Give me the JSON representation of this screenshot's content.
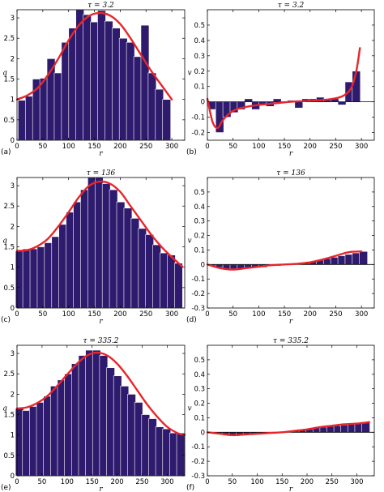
{
  "chart_data": [
    {
      "id": "a",
      "panel_label": "(a)",
      "type": "bar",
      "title": "τ = 3.2",
      "xlabel": "r",
      "ylabel": "q",
      "xlim": [
        0,
        325
      ],
      "ylim": [
        0,
        3.2
      ],
      "xticks": [
        "0",
        "50",
        "100",
        "150",
        "200",
        "250",
        "300"
      ],
      "yticks": [
        "0",
        "0.5",
        "1",
        "1.5",
        "2",
        "2.5",
        "3"
      ],
      "x": [
        10,
        24,
        38,
        52,
        66,
        80,
        94,
        108,
        122,
        136,
        150,
        164,
        178,
        192,
        206,
        220,
        234,
        248,
        262,
        276,
        290
      ],
      "series": [
        {
          "kind": "bar",
          "values": [
            0.98,
            1.08,
            1.5,
            1.52,
            2.0,
            1.65,
            2.4,
            2.75,
            3.2,
            3.08,
            2.9,
            3.18,
            2.92,
            2.75,
            2.5,
            2.4,
            2.05,
            2.82,
            1.65,
            1.25,
            1.0
          ]
        },
        {
          "kind": "line",
          "color": "#e8262a",
          "x": [
            0,
            20,
            40,
            60,
            80,
            100,
            120,
            140,
            160,
            180,
            200,
            220,
            240,
            260,
            280,
            300
          ],
          "values": [
            1.0,
            1.1,
            1.28,
            1.6,
            2.0,
            2.45,
            2.82,
            3.05,
            3.12,
            3.06,
            2.85,
            2.5,
            2.1,
            1.7,
            1.35,
            1.0
          ]
        }
      ]
    },
    {
      "id": "b",
      "panel_label": "(b)",
      "type": "bar",
      "title": "τ = 3.2",
      "xlabel": "r",
      "ylabel": "v",
      "xlim": [
        0,
        325
      ],
      "ylim": [
        -0.25,
        0.6
      ],
      "xticks": [
        "0",
        "50",
        "100",
        "150",
        "200",
        "250",
        "300"
      ],
      "yticks": [
        "-0.2",
        "-0.1",
        "0",
        "0.1",
        "0.2",
        "0.3",
        "0.4",
        "0.5"
      ],
      "x": [
        10,
        24,
        38,
        52,
        66,
        80,
        94,
        108,
        122,
        136,
        150,
        164,
        178,
        192,
        206,
        220,
        234,
        248,
        262,
        276,
        290
      ],
      "series": [
        {
          "kind": "bar",
          "values": [
            -0.05,
            -0.2,
            -0.1,
            -0.07,
            -0.05,
            0.02,
            -0.05,
            -0.02,
            -0.03,
            0.02,
            0.0,
            0.01,
            -0.04,
            0.02,
            0.02,
            0.03,
            0.02,
            0.02,
            -0.02,
            0.13,
            0.2
          ]
        },
        {
          "kind": "line",
          "color": "#e8262a",
          "x": [
            0,
            10,
            20,
            30,
            45,
            60,
            80,
            100,
            130,
            160,
            190,
            220,
            245,
            265,
            280,
            290,
            297
          ],
          "values": [
            0.02,
            -0.13,
            -0.17,
            -0.12,
            -0.07,
            -0.045,
            -0.03,
            -0.02,
            -0.01,
            0.0,
            0.005,
            0.01,
            0.02,
            0.04,
            0.09,
            0.2,
            0.35
          ]
        }
      ]
    },
    {
      "id": "c",
      "panel_label": "(c)",
      "type": "bar",
      "title": "τ = 136",
      "xlabel": "r",
      "ylabel": "q",
      "xlim": [
        0,
        325
      ],
      "ylim": [
        0,
        3.2
      ],
      "xticks": [
        "0",
        "50",
        "100",
        "150",
        "200",
        "250",
        "300"
      ],
      "yticks": [
        "0",
        "0.5",
        "1",
        "1.5",
        "2",
        "2.5",
        "3"
      ],
      "x": [
        5,
        19,
        33,
        47,
        61,
        75,
        89,
        103,
        117,
        131,
        145,
        159,
        173,
        187,
        201,
        215,
        229,
        243,
        257,
        271,
        285,
        299,
        313
      ],
      "series": [
        {
          "kind": "bar",
          "values": [
            1.4,
            1.45,
            1.45,
            1.5,
            1.6,
            1.75,
            2.05,
            2.35,
            2.6,
            2.9,
            3.2,
            3.2,
            3.05,
            2.9,
            2.6,
            2.45,
            2.2,
            1.95,
            1.8,
            1.55,
            1.35,
            1.3,
            1.1
          ]
        },
        {
          "kind": "line",
          "color": "#e8262a",
          "x": [
            0,
            20,
            40,
            60,
            80,
            100,
            120,
            140,
            160,
            180,
            200,
            220,
            240,
            260,
            280,
            300,
            320
          ],
          "values": [
            1.4,
            1.42,
            1.52,
            1.7,
            2.0,
            2.35,
            2.72,
            3.0,
            3.1,
            3.05,
            2.85,
            2.5,
            2.15,
            1.8,
            1.5,
            1.25,
            1.02
          ]
        }
      ]
    },
    {
      "id": "d",
      "panel_label": "(d)",
      "type": "bar",
      "title": "τ = 136",
      "xlabel": "r",
      "ylabel": "v",
      "xlim": [
        0,
        325
      ],
      "ylim": [
        -0.3,
        0.6
      ],
      "xticks": [
        "0",
        "50",
        "100",
        "150",
        "200",
        "250",
        "300"
      ],
      "yticks": [
        "-0.3",
        "-0.2",
        "-0.1",
        "0",
        "0.1",
        "0.2",
        "0.3",
        "0.4",
        "0.5"
      ],
      "x": [
        10,
        24,
        38,
        52,
        66,
        80,
        94,
        108,
        122,
        136,
        150,
        164,
        178,
        192,
        206,
        220,
        234,
        248,
        262,
        276,
        290,
        304
      ],
      "series": [
        {
          "kind": "bar",
          "values": [
            -0.01,
            -0.02,
            -0.03,
            -0.03,
            -0.03,
            -0.02,
            -0.02,
            -0.02,
            -0.01,
            -0.01,
            0.0,
            0.0,
            0.01,
            0.01,
            0.02,
            0.03,
            0.04,
            0.05,
            0.06,
            0.07,
            0.08,
            0.09
          ]
        },
        {
          "kind": "line",
          "color": "#e8262a",
          "x": [
            0,
            25,
            50,
            75,
            100,
            125,
            150,
            175,
            200,
            225,
            250,
            275,
            300
          ],
          "values": [
            0.0,
            -0.025,
            -0.035,
            -0.025,
            -0.015,
            -0.005,
            0.0,
            0.005,
            0.015,
            0.035,
            0.06,
            0.085,
            0.09
          ]
        }
      ]
    },
    {
      "id": "e",
      "panel_label": "(e)",
      "type": "bar",
      "title": "τ = 335.2",
      "xlabel": "r",
      "ylabel": "q",
      "xlim": [
        0,
        335
      ],
      "ylim": [
        0,
        3.2
      ],
      "xticks": [
        "0",
        "50",
        "100",
        "150",
        "200",
        "250",
        "300"
      ],
      "yticks": [
        "0",
        "0.5",
        "1",
        "1.5",
        "2",
        "2.5",
        "3"
      ],
      "x": [
        5,
        19,
        33,
        47,
        61,
        75,
        89,
        103,
        117,
        131,
        145,
        159,
        173,
        187,
        201,
        215,
        229,
        243,
        257,
        271,
        285,
        299,
        313,
        327
      ],
      "series": [
        {
          "kind": "bar",
          "values": [
            1.65,
            1.6,
            1.7,
            1.8,
            1.95,
            2.2,
            2.35,
            2.5,
            2.75,
            2.95,
            3.08,
            3.08,
            2.95,
            2.65,
            2.45,
            2.2,
            2.0,
            1.8,
            1.5,
            1.4,
            1.2,
            1.15,
            1.05,
            1.05
          ]
        },
        {
          "kind": "line",
          "color": "#e8262a",
          "x": [
            0,
            20,
            40,
            60,
            80,
            100,
            120,
            140,
            160,
            180,
            200,
            220,
            240,
            260,
            280,
            300,
            320,
            335
          ],
          "values": [
            1.65,
            1.68,
            1.78,
            1.95,
            2.2,
            2.48,
            2.75,
            2.95,
            3.02,
            2.95,
            2.75,
            2.45,
            2.1,
            1.75,
            1.45,
            1.2,
            1.05,
            1.0
          ]
        }
      ]
    },
    {
      "id": "f",
      "panel_label": "(f)",
      "type": "bar",
      "title": "τ = 335.2",
      "xlabel": "r",
      "ylabel": "v",
      "xlim": [
        0,
        335
      ],
      "ylim": [
        -0.3,
        0.6
      ],
      "xticks": [
        "0",
        "50",
        "100",
        "150",
        "200",
        "250",
        "300"
      ],
      "yticks": [
        "-0.3",
        "-0.2",
        "-0.1",
        "0",
        "0.1",
        "0.2",
        "0.3",
        "0.4",
        "0.5"
      ],
      "x": [
        10,
        24,
        38,
        52,
        66,
        80,
        94,
        108,
        122,
        136,
        150,
        164,
        178,
        192,
        206,
        220,
        234,
        248,
        262,
        276,
        290,
        304,
        318
      ],
      "series": [
        {
          "kind": "bar",
          "values": [
            -0.005,
            -0.01,
            -0.015,
            -0.02,
            -0.02,
            -0.015,
            -0.01,
            -0.01,
            -0.005,
            0.0,
            0.005,
            0.01,
            0.015,
            0.02,
            0.025,
            0.03,
            0.035,
            0.04,
            0.045,
            0.05,
            0.055,
            0.06,
            0.065
          ]
        },
        {
          "kind": "line",
          "color": "#e8262a",
          "x": [
            0,
            25,
            50,
            75,
            100,
            125,
            150,
            175,
            200,
            225,
            250,
            275,
            300,
            325
          ],
          "values": [
            0.0,
            -0.01,
            -0.02,
            -0.015,
            -0.01,
            -0.005,
            0.0,
            0.01,
            0.02,
            0.035,
            0.045,
            0.055,
            0.06,
            0.07
          ]
        }
      ]
    }
  ],
  "bar_color": "#2e1b6e",
  "bar_edge_color": "#ffffff",
  "axis_color": "#000000"
}
